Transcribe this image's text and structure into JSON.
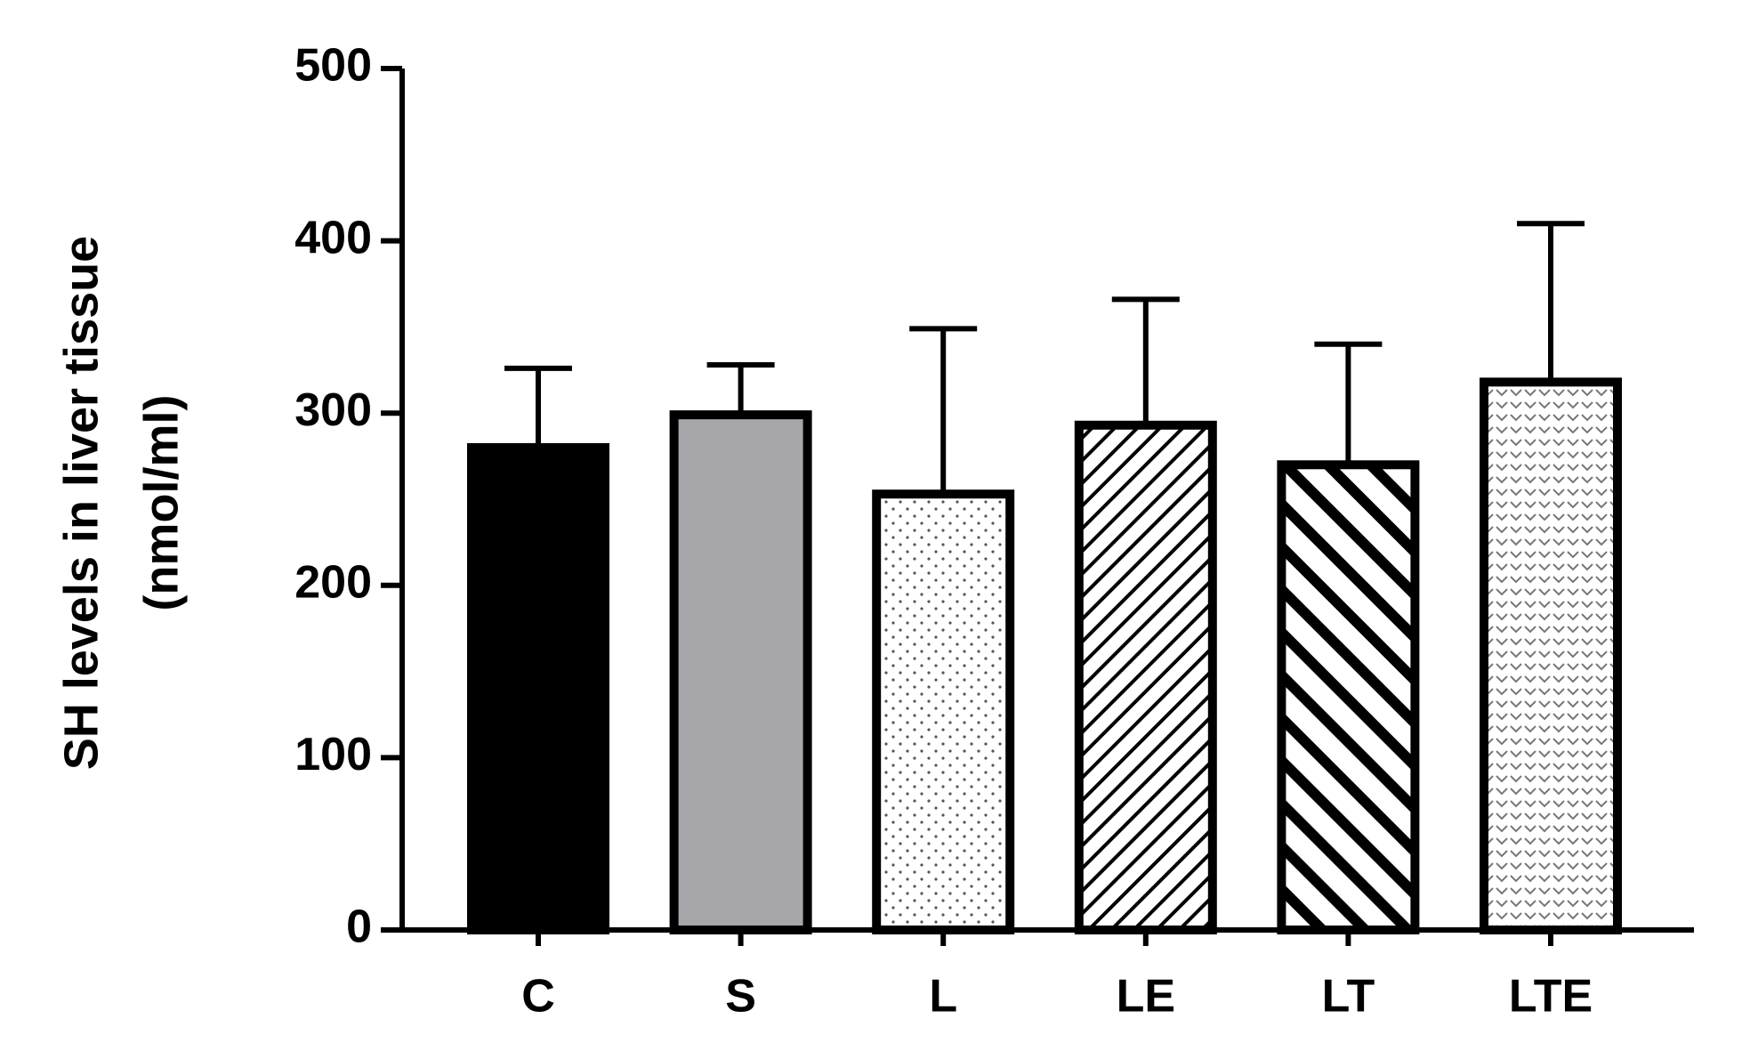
{
  "chart_data": {
    "type": "bar",
    "y_label_lines": [
      "SH levels in liver tissue",
      "(nmol/ml)"
    ],
    "categories": [
      "C",
      "S",
      "L",
      "LE",
      "LT",
      "LTE"
    ],
    "values": [
      280,
      299,
      253,
      293,
      270,
      318
    ],
    "errors": [
      46,
      29,
      96,
      73,
      70,
      92
    ],
    "colors": [
      "#000000",
      "#a7a6ab",
      "#ffffff",
      "#ffffff",
      "#ffffff",
      "#ffffff"
    ],
    "patterns": [
      "solid",
      "solid",
      "dots",
      "hatch",
      "back-hatch",
      "chevron"
    ],
    "ylim": [
      0,
      500
    ],
    "yticks": [
      0,
      100,
      200,
      300,
      400,
      500
    ]
  }
}
